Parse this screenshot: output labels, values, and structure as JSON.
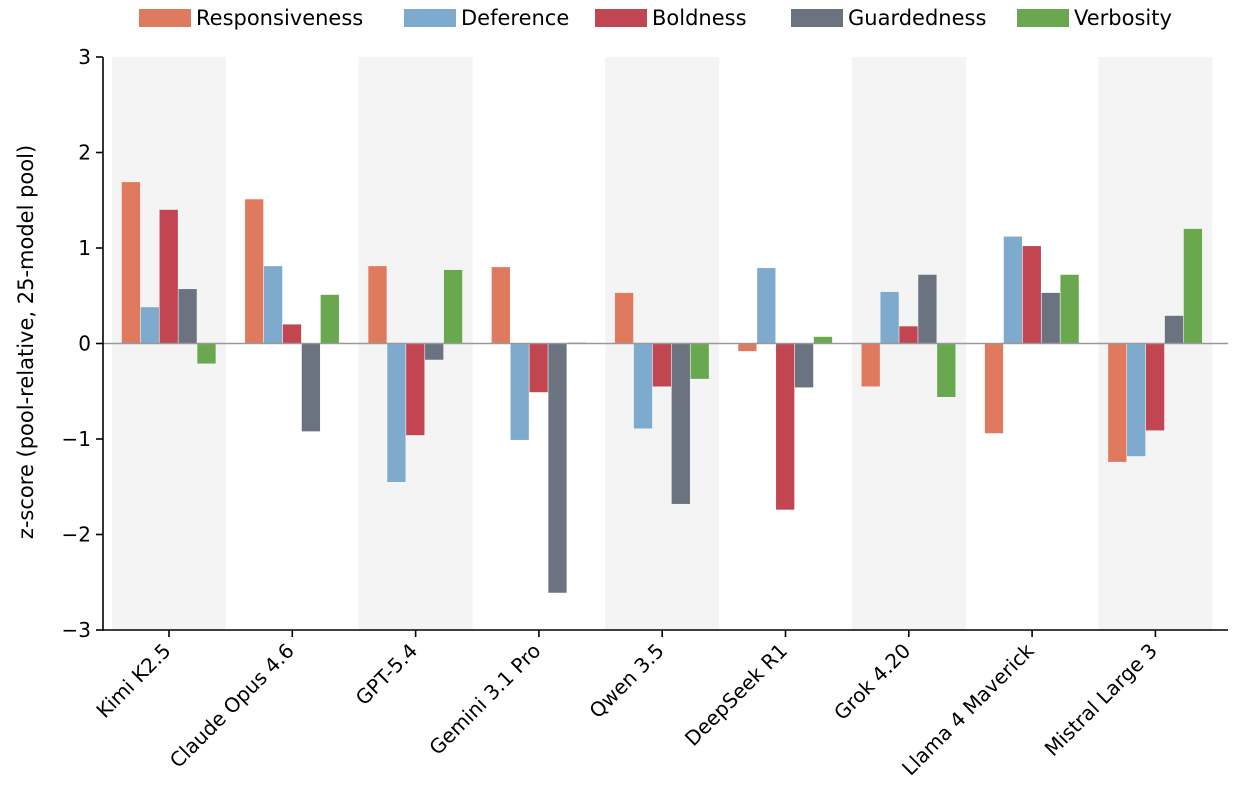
{
  "chart_data": {
    "type": "bar",
    "ylabel": "z-score (pool-relative, 25-model pool)",
    "xlabel": "",
    "ylim": [
      -3,
      3
    ],
    "yticks": [
      3,
      2,
      1,
      0,
      -1,
      -2,
      -3
    ],
    "ytick_labels": [
      "3",
      "2",
      "1",
      "0",
      "−1",
      "−2",
      "−3"
    ],
    "legend_position": "top",
    "zero_line": true,
    "alternating_band_color": "#f4f4f4",
    "categories": [
      "Kimi K2.5",
      "Claude Opus 4.6",
      "GPT-5.4",
      "Gemini 3.1 Pro",
      "Qwen 3.5",
      "DeepSeek R1",
      "Grok 4.20",
      "Llama 4 Maverick",
      "Mistral Large 3"
    ],
    "series": [
      {
        "name": "Responsiveness",
        "color": "#e07a5f",
        "values": [
          1.69,
          1.51,
          0.81,
          0.8,
          0.53,
          -0.08,
          -0.45,
          -0.94,
          -1.24
        ]
      },
      {
        "name": "Deference",
        "color": "#7eabcd",
        "values": [
          0.38,
          0.81,
          -1.45,
          -1.01,
          -0.89,
          0.79,
          0.54,
          1.12,
          -1.18
        ]
      },
      {
        "name": "Boldness",
        "color": "#c24552",
        "values": [
          1.4,
          0.2,
          -0.96,
          -0.51,
          -0.45,
          -1.74,
          0.18,
          1.02,
          -0.91
        ]
      },
      {
        "name": "Guardedness",
        "color": "#6b7280",
        "values": [
          0.57,
          -0.92,
          -0.17,
          -2.61,
          -1.68,
          -0.46,
          0.72,
          0.53,
          0.29
        ]
      },
      {
        "name": "Verbosity",
        "color": "#6aa84f",
        "values": [
          -0.21,
          0.51,
          0.77,
          0.01,
          -0.37,
          0.07,
          -0.56,
          0.72,
          1.2
        ]
      }
    ]
  }
}
